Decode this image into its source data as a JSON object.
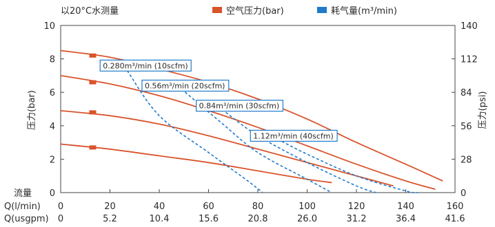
{
  "header": {
    "condition": "以20°C水测量",
    "legend": [
      {
        "label": "空气压力(bar)",
        "color": "#d9532b",
        "icon": "orange-square-icon"
      },
      {
        "label": "耗气量(m³/min)",
        "color": "#1f7ac9",
        "icon": "blue-square-icon"
      }
    ]
  },
  "chart_data": {
    "type": "line",
    "y_left": {
      "label": "压力(bar)",
      "min": 0,
      "max": 10,
      "ticks": [
        "0",
        "2",
        "4",
        "6",
        "8",
        "10"
      ],
      "tick_values": [
        0,
        2,
        4,
        6,
        8,
        10
      ]
    },
    "y_right": {
      "label": "压力(psi)",
      "min": 0,
      "max": 140,
      "ticks": [
        "0",
        "28",
        "56",
        "84",
        "112",
        "140"
      ],
      "tick_values": [
        0,
        28,
        56,
        84,
        112,
        140
      ]
    },
    "x_label_flow": "流量",
    "x_axis_1": {
      "label": "Q(l/min)",
      "ticks": [
        "0",
        "20",
        "40",
        "60",
        "80",
        "100",
        "120",
        "140",
        "160"
      ],
      "tick_values": [
        0,
        20,
        40,
        60,
        80,
        100,
        120,
        140,
        160
      ]
    },
    "x_axis_2": {
      "label": "Q(usgpm)",
      "ticks": [
        "0",
        "5.2",
        "10.4",
        "15.6",
        "20.8",
        "26.0",
        "31.2",
        "36.4",
        "41.6"
      ]
    },
    "xlim": [
      0,
      160
    ],
    "grid": false,
    "pressure_series": [
      {
        "marker": [
          13,
          8.2
        ],
        "points": [
          [
            0,
            8.5
          ],
          [
            20,
            8.1
          ],
          [
            40,
            7.4
          ],
          [
            60,
            6.6
          ],
          [
            80,
            5.6
          ],
          [
            100,
            4.4
          ],
          [
            120,
            3.0
          ],
          [
            140,
            1.7
          ],
          [
            155,
            0.7
          ]
        ]
      },
      {
        "marker": [
          13,
          6.6
        ],
        "points": [
          [
            0,
            7.0
          ],
          [
            20,
            6.5
          ],
          [
            40,
            5.8
          ],
          [
            60,
            4.9
          ],
          [
            80,
            3.9
          ],
          [
            100,
            2.8
          ],
          [
            120,
            1.7
          ],
          [
            140,
            0.7
          ],
          [
            152,
            0.2
          ]
        ]
      },
      {
        "marker": [
          13,
          4.8
        ],
        "points": [
          [
            0,
            4.9
          ],
          [
            20,
            4.6
          ],
          [
            40,
            4.1
          ],
          [
            60,
            3.4
          ],
          [
            80,
            2.6
          ],
          [
            100,
            1.8
          ],
          [
            120,
            1.0
          ],
          [
            135,
            0.4
          ]
        ]
      },
      {
        "marker": [
          13,
          2.7
        ],
        "points": [
          [
            0,
            2.9
          ],
          [
            20,
            2.6
          ],
          [
            40,
            2.2
          ],
          [
            60,
            1.8
          ],
          [
            80,
            1.3
          ],
          [
            100,
            0.8
          ],
          [
            110,
            0.6
          ]
        ]
      }
    ],
    "air_series": [
      {
        "label": "0.280m³/min (10scfm)",
        "label_at": [
          16,
          7.6
        ],
        "points": [
          [
            27,
            7.3
          ],
          [
            40,
            4.6
          ],
          [
            60,
            2.4
          ],
          [
            75,
            0.8
          ],
          [
            82,
            0
          ]
        ]
      },
      {
        "label": "0.56m³/min (20scfm)",
        "label_at": [
          33,
          6.4
        ],
        "points": [
          [
            49,
            6.2
          ],
          [
            65,
            4.2
          ],
          [
            80,
            2.4
          ],
          [
            100,
            0.8
          ],
          [
            110,
            0
          ]
        ]
      },
      {
        "label": "0.84m³/min (30scfm)",
        "label_at": [
          55,
          5.2
        ],
        "points": [
          [
            67,
            4.8
          ],
          [
            80,
            3.4
          ],
          [
            100,
            1.8
          ],
          [
            120,
            0.4
          ],
          [
            128,
            0
          ]
        ]
      },
      {
        "label": "1.12m³/min (40scfm)",
        "label_at": [
          77,
          3.4
        ],
        "points": [
          [
            88,
            3.2
          ],
          [
            100,
            2.3
          ],
          [
            120,
            1.0
          ],
          [
            140,
            0.1
          ],
          [
            145,
            0
          ]
        ]
      }
    ]
  }
}
